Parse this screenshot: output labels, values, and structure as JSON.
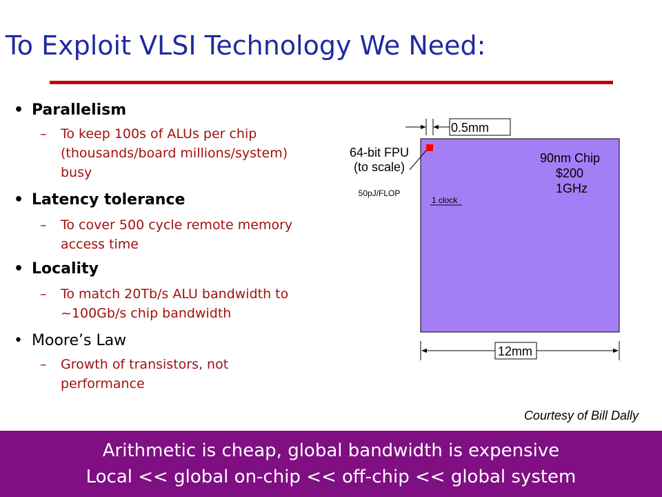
{
  "title": "To Exploit VLSI Technology We Need:",
  "bullets": [
    {
      "label": "Parallelism",
      "sub": "To keep 100s of ALUs per chip (thousands/board millions/system) busy"
    },
    {
      "label": "Latency tolerance",
      "sub": "To cover 500 cycle remote memory access time"
    },
    {
      "label": "Locality",
      "sub": "To match 20Tb/s ALU bandwidth to ~100Gb/s chip bandwidth"
    },
    {
      "label": "Moore’s Law",
      "sub": "Growth of transistors, not performance"
    }
  ],
  "sub_dash": "–",
  "diagram": {
    "fpu_size": "0.5mm",
    "fpu_label_line1": "64-bit FPU",
    "fpu_label_line2": "(to scale)",
    "energy": "50pJ/FLOP",
    "clock": "1 clock",
    "chip_line1": "90nm Chip",
    "chip_line2": "$200",
    "chip_line3": "1GHz",
    "chip_size": "12mm",
    "chip_color": "#a47ef4",
    "fpu_color": "#ff0000"
  },
  "courtesy": "Courtesy of Bill Dally",
  "footer": {
    "line1": "Arithmetic is cheap, global bandwidth is expensive",
    "line2": "Local << global on-chip << off-chip << global system"
  }
}
